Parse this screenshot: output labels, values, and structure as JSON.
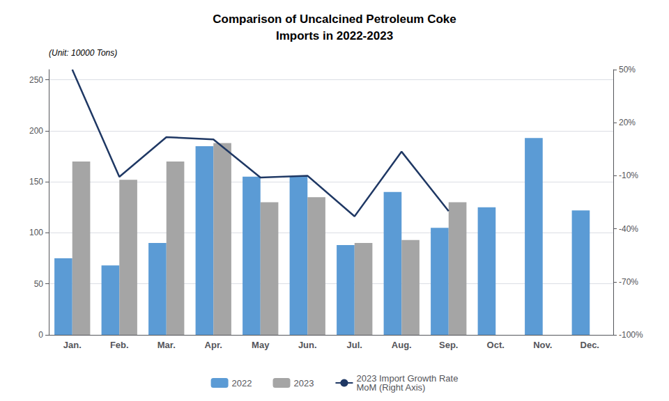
{
  "chart_data": {
    "type": "bar",
    "title": "Comparison of Uncalcined Petroleum Coke\nImports in 2022-2023",
    "ylabel": "(Unit: 10000 Tons)",
    "categories": [
      "Jan.",
      "Feb.",
      "Mar.",
      "Apr.",
      "May",
      "Jun.",
      "Jul.",
      "Aug.",
      "Sep.",
      "Oct.",
      "Nov.",
      "Dec."
    ],
    "series": [
      {
        "name": "2022",
        "color": "#5b9bd5",
        "values": [
          75,
          68,
          90,
          185,
          155,
          155,
          88,
          140,
          105,
          125,
          193,
          122
        ]
      },
      {
        "name": "2023",
        "color": "#a5a5a5",
        "values": [
          170,
          152,
          170,
          188,
          130,
          135,
          90,
          93,
          130,
          null,
          null,
          null
        ]
      },
      {
        "name": "2023 Import Growth Rate\nMoM (Right Axis)",
        "type": "line",
        "axis": "y2",
        "color": "#1f3864",
        "marker": "none",
        "values": [
          0.5,
          -0.106,
          0.118,
          0.105,
          -0.11,
          -0.1,
          -0.33,
          0.036,
          -0.3,
          null,
          null,
          null
        ]
      }
    ],
    "ylim": [
      0,
      260
    ],
    "yticks": [
      0,
      50,
      100,
      150,
      200,
      250
    ],
    "y2lim": [
      -1.0,
      0.5
    ],
    "y2ticks": [
      {
        "value": -1.0,
        "label": "-100%"
      },
      {
        "value": -0.7,
        "label": "-70%"
      },
      {
        "value": -0.4,
        "label": "-40%"
      },
      {
        "value": -0.1,
        "label": "-10%"
      },
      {
        "value": 0.2,
        "label": "20%"
      },
      {
        "value": 0.5,
        "label": "50%"
      }
    ],
    "grid": true,
    "legend": "bottom"
  }
}
